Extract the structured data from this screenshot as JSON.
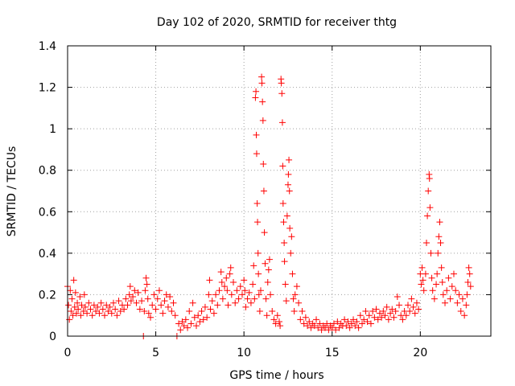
{
  "chart_data": {
    "type": "scatter",
    "title": "Day 102 of 2020, SRMTID for receiver thtg",
    "xlabel": "GPS time / hours",
    "ylabel": "SRMTID / TECUs",
    "xlim": [
      0,
      24
    ],
    "ylim": [
      0,
      1.4
    ],
    "xticks": [
      0,
      5,
      10,
      15,
      20
    ],
    "yticks": [
      0,
      0.2,
      0.4,
      0.6,
      0.8,
      1,
      1.2,
      1.4
    ],
    "xtick_labels": [
      "0",
      "5",
      "10",
      "15",
      "20"
    ],
    "ytick_labels": [
      "0",
      "0.2",
      "0.4",
      "0.6",
      "0.8",
      "1",
      "1.2",
      "1.4"
    ],
    "grid": true,
    "marker": "plus",
    "color": "#ff0000",
    "series": [
      {
        "name": "SRMTID",
        "points": [
          [
            0.0,
            0.24
          ],
          [
            0.05,
            0.15
          ],
          [
            0.1,
            0.08
          ],
          [
            0.15,
            0.22
          ],
          [
            0.2,
            0.12
          ],
          [
            0.25,
            0.18
          ],
          [
            0.3,
            0.1
          ],
          [
            0.35,
            0.27
          ],
          [
            0.4,
            0.14
          ],
          [
            0.45,
            0.21
          ],
          [
            0.5,
            0.11
          ],
          [
            0.55,
            0.16
          ],
          [
            0.6,
            0.13
          ],
          [
            0.7,
            0.19
          ],
          [
            0.75,
            0.1
          ],
          [
            0.8,
            0.15
          ],
          [
            0.9,
            0.12
          ],
          [
            0.95,
            0.2
          ],
          [
            1.0,
            0.14
          ],
          [
            1.1,
            0.11
          ],
          [
            1.2,
            0.16
          ],
          [
            1.3,
            0.13
          ],
          [
            1.4,
            0.1
          ],
          [
            1.5,
            0.15
          ],
          [
            1.6,
            0.12
          ],
          [
            1.7,
            0.14
          ],
          [
            1.8,
            0.11
          ],
          [
            1.9,
            0.16
          ],
          [
            2.0,
            0.13
          ],
          [
            2.1,
            0.1
          ],
          [
            2.2,
            0.15
          ],
          [
            2.3,
            0.12
          ],
          [
            2.4,
            0.14
          ],
          [
            2.5,
            0.11
          ],
          [
            2.6,
            0.16
          ],
          [
            2.7,
            0.13
          ],
          [
            2.8,
            0.1
          ],
          [
            2.9,
            0.17
          ],
          [
            3.0,
            0.12
          ],
          [
            3.1,
            0.15
          ],
          [
            3.2,
            0.13
          ],
          [
            3.3,
            0.18
          ],
          [
            3.4,
            0.15
          ],
          [
            3.5,
            0.2
          ],
          [
            3.55,
            0.24
          ],
          [
            3.6,
            0.17
          ],
          [
            3.7,
            0.19
          ],
          [
            3.8,
            0.22
          ],
          [
            3.9,
            0.16
          ],
          [
            4.0,
            0.21
          ],
          [
            4.1,
            0.13
          ],
          [
            4.2,
            0.17
          ],
          [
            4.3,
            0.0
          ],
          [
            4.35,
            0.12
          ],
          [
            4.4,
            0.22
          ],
          [
            4.45,
            0.28
          ],
          [
            4.5,
            0.25
          ],
          [
            4.55,
            0.18
          ],
          [
            4.6,
            0.11
          ],
          [
            4.7,
            0.09
          ],
          [
            4.8,
            0.15
          ],
          [
            4.9,
            0.2
          ],
          [
            5.0,
            0.13
          ],
          [
            5.1,
            0.18
          ],
          [
            5.2,
            0.22
          ],
          [
            5.3,
            0.15
          ],
          [
            5.4,
            0.11
          ],
          [
            5.5,
            0.17
          ],
          [
            5.6,
            0.2
          ],
          [
            5.7,
            0.14
          ],
          [
            5.8,
            0.19
          ],
          [
            5.9,
            0.12
          ],
          [
            6.0,
            0.16
          ],
          [
            6.1,
            0.1
          ],
          [
            6.2,
            0.0
          ],
          [
            6.3,
            0.06
          ],
          [
            6.4,
            0.03
          ],
          [
            6.5,
            0.07
          ],
          [
            6.6,
            0.05
          ],
          [
            6.7,
            0.08
          ],
          [
            6.8,
            0.04
          ],
          [
            6.9,
            0.12
          ],
          [
            7.0,
            0.06
          ],
          [
            7.1,
            0.16
          ],
          [
            7.2,
            0.09
          ],
          [
            7.3,
            0.05
          ],
          [
            7.4,
            0.1
          ],
          [
            7.5,
            0.07
          ],
          [
            7.6,
            0.12
          ],
          [
            7.7,
            0.08
          ],
          [
            7.8,
            0.14
          ],
          [
            7.9,
            0.09
          ],
          [
            8.0,
            0.2
          ],
          [
            8.05,
            0.27
          ],
          [
            8.1,
            0.13
          ],
          [
            8.2,
            0.17
          ],
          [
            8.3,
            0.11
          ],
          [
            8.4,
            0.2
          ],
          [
            8.5,
            0.15
          ],
          [
            8.6,
            0.22
          ],
          [
            8.7,
            0.31
          ],
          [
            8.75,
            0.26
          ],
          [
            8.8,
            0.18
          ],
          [
            8.9,
            0.24
          ],
          [
            9.0,
            0.28
          ],
          [
            9.05,
            0.22
          ],
          [
            9.1,
            0.15
          ],
          [
            9.2,
            0.3
          ],
          [
            9.25,
            0.33
          ],
          [
            9.3,
            0.2
          ],
          [
            9.4,
            0.26
          ],
          [
            9.5,
            0.16
          ],
          [
            9.6,
            0.22
          ],
          [
            9.7,
            0.18
          ],
          [
            9.8,
            0.24
          ],
          [
            9.9,
            0.2
          ],
          [
            10.0,
            0.27
          ],
          [
            10.05,
            0.22
          ],
          [
            10.1,
            0.14
          ],
          [
            10.2,
            0.18
          ],
          [
            10.3,
            0.21
          ],
          [
            10.4,
            0.16
          ],
          [
            10.5,
            0.25
          ],
          [
            10.55,
            0.34
          ],
          [
            10.6,
            0.18
          ],
          [
            10.65,
            1.15
          ],
          [
            10.68,
            1.18
          ],
          [
            10.7,
            0.97
          ],
          [
            10.72,
            0.88
          ],
          [
            10.75,
            0.64
          ],
          [
            10.77,
            0.55
          ],
          [
            10.8,
            0.4
          ],
          [
            10.82,
            0.3
          ],
          [
            10.85,
            0.2
          ],
          [
            10.9,
            0.12
          ],
          [
            10.95,
            0.22
          ],
          [
            11.0,
            1.25
          ],
          [
            11.02,
            1.22
          ],
          [
            11.05,
            1.13
          ],
          [
            11.08,
            1.04
          ],
          [
            11.1,
            0.83
          ],
          [
            11.13,
            0.7
          ],
          [
            11.16,
            0.5
          ],
          [
            11.2,
            0.35
          ],
          [
            11.25,
            0.18
          ],
          [
            11.3,
            0.1
          ],
          [
            11.35,
            0.26
          ],
          [
            11.4,
            0.32
          ],
          [
            11.45,
            0.37
          ],
          [
            11.5,
            0.2
          ],
          [
            11.6,
            0.12
          ],
          [
            11.7,
            0.08
          ],
          [
            11.8,
            0.06
          ],
          [
            11.9,
            0.1
          ],
          [
            12.0,
            0.07
          ],
          [
            12.05,
            0.05
          ],
          [
            12.1,
            1.24
          ],
          [
            12.12,
            1.22
          ],
          [
            12.15,
            1.17
          ],
          [
            12.18,
            1.03
          ],
          [
            12.2,
            0.82
          ],
          [
            12.22,
            0.64
          ],
          [
            12.25,
            0.55
          ],
          [
            12.28,
            0.45
          ],
          [
            12.3,
            0.36
          ],
          [
            12.35,
            0.25
          ],
          [
            12.4,
            0.17
          ],
          [
            12.45,
            0.58
          ],
          [
            12.5,
            0.73
          ],
          [
            12.52,
            0.78
          ],
          [
            12.55,
            0.85
          ],
          [
            12.58,
            0.7
          ],
          [
            12.6,
            0.52
          ],
          [
            12.65,
            0.4
          ],
          [
            12.7,
            0.48
          ],
          [
            12.75,
            0.3
          ],
          [
            12.8,
            0.18
          ],
          [
            12.85,
            0.12
          ],
          [
            12.9,
            0.2
          ],
          [
            13.0,
            0.24
          ],
          [
            13.1,
            0.16
          ],
          [
            13.2,
            0.08
          ],
          [
            13.3,
            0.12
          ],
          [
            13.4,
            0.06
          ],
          [
            13.5,
            0.09
          ],
          [
            13.6,
            0.05
          ],
          [
            13.7,
            0.07
          ],
          [
            13.8,
            0.04
          ],
          [
            13.9,
            0.06
          ],
          [
            14.0,
            0.05
          ],
          [
            14.1,
            0.08
          ],
          [
            14.2,
            0.04
          ],
          [
            14.3,
            0.06
          ],
          [
            14.4,
            0.03
          ],
          [
            14.5,
            0.05
          ],
          [
            14.6,
            0.04
          ],
          [
            14.7,
            0.06
          ],
          [
            14.8,
            0.03
          ],
          [
            14.9,
            0.05
          ],
          [
            15.0,
            0.04
          ],
          [
            15.1,
            0.06
          ],
          [
            15.2,
            0.03
          ],
          [
            15.3,
            0.07
          ],
          [
            15.4,
            0.04
          ],
          [
            15.5,
            0.06
          ],
          [
            15.6,
            0.05
          ],
          [
            15.7,
            0.08
          ],
          [
            15.8,
            0.05
          ],
          [
            15.9,
            0.07
          ],
          [
            16.0,
            0.04
          ],
          [
            16.1,
            0.06
          ],
          [
            16.2,
            0.08
          ],
          [
            16.3,
            0.05
          ],
          [
            16.4,
            0.07
          ],
          [
            16.5,
            0.04
          ],
          [
            16.6,
            0.1
          ],
          [
            16.7,
            0.06
          ],
          [
            16.8,
            0.08
          ],
          [
            16.9,
            0.12
          ],
          [
            17.0,
            0.07
          ],
          [
            17.1,
            0.1
          ],
          [
            17.2,
            0.06
          ],
          [
            17.3,
            0.12
          ],
          [
            17.4,
            0.09
          ],
          [
            17.5,
            0.13
          ],
          [
            17.6,
            0.08
          ],
          [
            17.7,
            0.11
          ],
          [
            17.8,
            0.09
          ],
          [
            17.9,
            0.12
          ],
          [
            18.0,
            0.1
          ],
          [
            18.1,
            0.14
          ],
          [
            18.2,
            0.08
          ],
          [
            18.3,
            0.11
          ],
          [
            18.4,
            0.13
          ],
          [
            18.5,
            0.09
          ],
          [
            18.6,
            0.12
          ],
          [
            18.7,
            0.19
          ],
          [
            18.8,
            0.15
          ],
          [
            18.9,
            0.1
          ],
          [
            19.0,
            0.08
          ],
          [
            19.1,
            0.12
          ],
          [
            19.2,
            0.1
          ],
          [
            19.3,
            0.15
          ],
          [
            19.4,
            0.12
          ],
          [
            19.5,
            0.18
          ],
          [
            19.6,
            0.14
          ],
          [
            19.7,
            0.11
          ],
          [
            19.8,
            0.16
          ],
          [
            19.9,
            0.13
          ],
          [
            20.0,
            0.3
          ],
          [
            20.05,
            0.25
          ],
          [
            20.1,
            0.33
          ],
          [
            20.15,
            0.27
          ],
          [
            20.2,
            0.22
          ],
          [
            20.3,
            0.3
          ],
          [
            20.35,
            0.45
          ],
          [
            20.4,
            0.58
          ],
          [
            20.45,
            0.7
          ],
          [
            20.5,
            0.78
          ],
          [
            20.52,
            0.76
          ],
          [
            20.55,
            0.62
          ],
          [
            20.6,
            0.4
          ],
          [
            20.65,
            0.28
          ],
          [
            20.7,
            0.22
          ],
          [
            20.8,
            0.18
          ],
          [
            20.9,
            0.25
          ],
          [
            20.95,
            0.3
          ],
          [
            21.0,
            0.4
          ],
          [
            21.05,
            0.48
          ],
          [
            21.1,
            0.55
          ],
          [
            21.15,
            0.45
          ],
          [
            21.2,
            0.33
          ],
          [
            21.25,
            0.26
          ],
          [
            21.3,
            0.2
          ],
          [
            21.4,
            0.16
          ],
          [
            21.5,
            0.22
          ],
          [
            21.6,
            0.28
          ],
          [
            21.7,
            0.18
          ],
          [
            21.8,
            0.24
          ],
          [
            21.9,
            0.3
          ],
          [
            22.0,
            0.22
          ],
          [
            22.1,
            0.16
          ],
          [
            22.2,
            0.2
          ],
          [
            22.3,
            0.12
          ],
          [
            22.4,
            0.18
          ],
          [
            22.5,
            0.1
          ],
          [
            22.6,
            0.15
          ],
          [
            22.65,
            0.2
          ],
          [
            22.7,
            0.26
          ],
          [
            22.75,
            0.33
          ],
          [
            22.8,
            0.3
          ],
          [
            22.85,
            0.24
          ]
        ]
      }
    ]
  }
}
